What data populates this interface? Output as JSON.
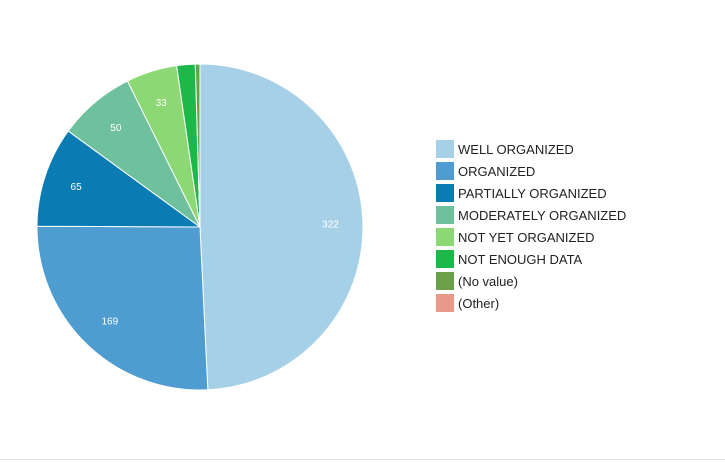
{
  "chart_data": {
    "type": "pie",
    "title": "",
    "legend_position": "right",
    "start_angle_deg": 0,
    "direction": "clockwise",
    "slices": [
      {
        "label": "WELL ORGANIZED",
        "value": 322,
        "color": "#a6d0e7",
        "show_value": true
      },
      {
        "label": "ORGANIZED",
        "value": 169,
        "color": "#4e9cd0",
        "show_value": true
      },
      {
        "label": "PARTIALLY ORGANIZED",
        "value": 65,
        "color": "#0a7bb3",
        "show_value": true
      },
      {
        "label": "MODERATELY ORGANIZED",
        "value": 50,
        "color": "#6fc09c",
        "show_value": true
      },
      {
        "label": "NOT YET ORGANIZED",
        "value": 33,
        "color": "#8cd874",
        "show_value": true
      },
      {
        "label": "NOT ENOUGH DATA",
        "value": 12,
        "color": "#1db84a",
        "show_value": false
      },
      {
        "label": "(No value)",
        "value": 3,
        "color": "#6aa148",
        "show_value": false
      },
      {
        "label": "(Other)",
        "value": 0,
        "color": "#e8998a",
        "show_value": false
      }
    ]
  }
}
